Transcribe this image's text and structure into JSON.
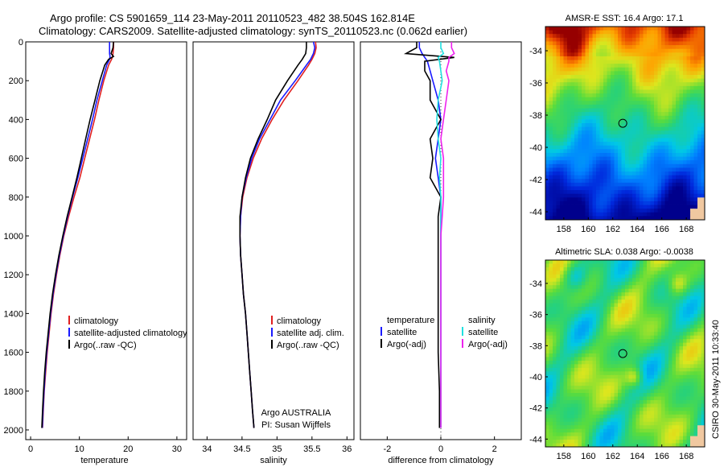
{
  "header": {
    "line1": "Argo profile: CS 5901659_114 23-May-2011 20110523_482 38.504S 162.814E",
    "line2": "Climatology: CARS2009. Satellite-adjusted climatology: synTS_20110523.nc (0.062d earlier)"
  },
  "colors": {
    "climatology": "#e02020",
    "satellite": "#1a1aff",
    "argo": "#000000",
    "cyan": "#20e0e0",
    "magenta": "#ee22ee"
  },
  "chart_data": [
    {
      "type": "line",
      "xlabel": "temperature",
      "ylim": [
        0,
        2050
      ],
      "xlim": [
        -1,
        32
      ],
      "xticks": [
        0,
        10,
        20,
        30
      ],
      "yticks": [
        0,
        200,
        400,
        600,
        800,
        1000,
        1200,
        1400,
        1600,
        1800,
        2000
      ],
      "y": [
        0,
        30,
        60,
        75,
        90,
        120,
        200,
        300,
        400,
        500,
        600,
        700,
        800,
        900,
        1000,
        1100,
        1200,
        1300,
        1400,
        1500,
        1600,
        1700,
        1800,
        1900,
        1990
      ],
      "series": [
        {
          "name": "climatology",
          "color_key": "climatology",
          "values": [
            17.0,
            17.0,
            16.9,
            16.8,
            16.6,
            16.0,
            15.0,
            14.0,
            13.1,
            12.1,
            11.1,
            10.1,
            8.9,
            7.8,
            6.8,
            6.0,
            5.3,
            4.7,
            4.2,
            3.8,
            3.4,
            3.1,
            2.8,
            2.6,
            2.45
          ]
        },
        {
          "name": "satellite-adjusted climatology",
          "color_key": "satellite",
          "values": [
            16.2,
            16.2,
            16.2,
            16.3,
            16.2,
            15.6,
            14.7,
            13.6,
            12.7,
            11.7,
            10.7,
            9.7,
            8.6,
            7.6,
            6.7,
            5.9,
            5.2,
            4.6,
            4.1,
            3.7,
            3.3,
            3.0,
            2.75,
            2.55,
            2.4
          ]
        },
        {
          "name": "Argo(..raw -QC)",
          "color_key": "argo",
          "values": [
            17.0,
            16.9,
            16.5,
            17.0,
            16.0,
            15.2,
            14.2,
            13.2,
            12.2,
            11.3,
            10.4,
            9.5,
            8.5,
            7.5,
            6.6,
            5.8,
            5.1,
            4.5,
            4.0,
            3.6,
            3.2,
            2.9,
            2.65,
            2.45,
            2.3
          ]
        }
      ],
      "legend": [
        "climatology",
        "satellite-adjusted climatology",
        "Argo(..raw -QC)"
      ]
    },
    {
      "type": "line",
      "xlabel": "salinity",
      "ylim": [
        0,
        2050
      ],
      "xlim": [
        33.8,
        36.1
      ],
      "xticks": [
        34,
        34.5,
        35,
        35.5,
        36
      ],
      "xtick_labels": [
        "34",
        "34.5",
        "35",
        "35.5",
        "36"
      ],
      "y": [
        0,
        30,
        60,
        90,
        120,
        200,
        300,
        400,
        500,
        600,
        700,
        800,
        900,
        1000,
        1100,
        1200,
        1300,
        1400,
        1500,
        1600,
        1700,
        1800,
        1900,
        1990
      ],
      "series": [
        {
          "name": "climatology",
          "color_key": "climatology",
          "values": [
            35.55,
            35.56,
            35.54,
            35.5,
            35.45,
            35.3,
            35.1,
            34.93,
            34.78,
            34.66,
            34.57,
            34.51,
            34.48,
            34.47,
            34.48,
            34.5,
            34.52,
            34.55,
            34.57,
            34.59,
            34.61,
            34.63,
            34.65,
            34.67
          ]
        },
        {
          "name": "satellite adj. clim.",
          "color_key": "satellite",
          "values": [
            35.52,
            35.54,
            35.52,
            35.48,
            35.42,
            35.26,
            35.05,
            34.9,
            34.75,
            34.64,
            34.56,
            34.5,
            34.48,
            34.47,
            34.48,
            34.5,
            34.52,
            34.55,
            34.57,
            34.59,
            34.61,
            34.63,
            34.65,
            34.67
          ]
        },
        {
          "name": "Argo(..raw -QC)",
          "color_key": "argo",
          "values": [
            35.42,
            35.42,
            35.41,
            35.36,
            35.3,
            35.15,
            34.98,
            34.86,
            34.73,
            34.62,
            34.55,
            34.5,
            34.47,
            34.47,
            34.48,
            34.5,
            34.52,
            34.55,
            34.57,
            34.59,
            34.61,
            34.63,
            34.65,
            34.67
          ]
        }
      ],
      "legend": [
        "climatology",
        "satellite adj. clim.",
        "Argo(..raw -QC)"
      ],
      "annotation": [
        "Argo AUSTRALIA",
        "PI: Susan Wijffels"
      ]
    },
    {
      "type": "line",
      "xlabel": "difference from climatology",
      "ylim": [
        0,
        2050
      ],
      "xlim": [
        -3.0,
        3.0
      ],
      "xticks": [
        -2,
        0,
        2
      ],
      "y": [
        0,
        30,
        60,
        80,
        100,
        150,
        200,
        300,
        400,
        500,
        600,
        700,
        800,
        900,
        1000,
        1200,
        1400,
        1600,
        1800,
        1990
      ],
      "series": [
        {
          "name": "temperature satellite",
          "color_key": "satellite",
          "values": [
            -0.8,
            -0.8,
            -0.7,
            -0.6,
            -0.5,
            -0.4,
            -0.3,
            -0.1,
            0.0,
            -0.1,
            -0.2,
            -0.1,
            0.0,
            0.0,
            0.0,
            0.0,
            0.0,
            0.0,
            0.0,
            0.0
          ]
        },
        {
          "name": "temperature Argo(-adj)",
          "color_key": "argo",
          "values": [
            -0.9,
            -0.9,
            -1.3,
            0.5,
            -0.6,
            -0.6,
            -0.4,
            -0.4,
            0.0,
            -0.4,
            -0.3,
            -0.4,
            0.0,
            -0.1,
            -0.1,
            -0.1,
            -0.1,
            -0.1,
            -0.05,
            -0.05
          ]
        },
        {
          "name": "salinity satellite",
          "color_key": "cyan",
          "values": [
            0.0,
            0.0,
            0.1,
            -0.1,
            -0.05,
            0.0,
            0.05,
            -0.1,
            -0.15,
            -0.1,
            0.0,
            -0.05,
            0.0,
            0.0,
            0.0,
            0.0,
            0.0,
            0.0,
            0.0,
            0.0
          ]
        },
        {
          "name": "salinity Argo(-adj)",
          "color_key": "magenta",
          "values": [
            0.4,
            0.4,
            0.5,
            0.3,
            0.3,
            0.2,
            0.3,
            0.2,
            0.1,
            0.0,
            0.1,
            0.1,
            0.1,
            0.05,
            0.0,
            0.0,
            0.0,
            0.0,
            0.0,
            0.0
          ]
        }
      ],
      "legend_temperature": {
        "heading": "temperature",
        "items": [
          "satellite",
          "Argo(-adj)"
        ]
      },
      "legend_salinity": {
        "heading": "salinity",
        "items": [
          "satellite",
          "Argo(-adj)"
        ]
      }
    },
    {
      "type": "heatmap",
      "title": "AMSR-E SST: 16.4 Argo: 17.1",
      "xlim": [
        156.5,
        169.5
      ],
      "ylim": [
        -44.5,
        -32.5
      ],
      "xticks": [
        158,
        160,
        162,
        164,
        166,
        168
      ],
      "yticks": [
        -34,
        -36,
        -38,
        -40,
        -42,
        -44
      ],
      "marker": {
        "lon": 162.814,
        "lat": -38.504
      }
    },
    {
      "type": "heatmap",
      "title": "Altimetric SLA: 0.038 Argo: -0.0038",
      "xlim": [
        156.5,
        169.5
      ],
      "ylim": [
        -44.5,
        -32.5
      ],
      "xticks": [
        158,
        160,
        162,
        164,
        166,
        168
      ],
      "yticks": [
        -34,
        -36,
        -38,
        -40,
        -42,
        -44
      ],
      "marker": {
        "lon": 162.814,
        "lat": -38.504
      }
    }
  ],
  "footer_vertical": "CSIRO 30-May-2011 10:33:40"
}
